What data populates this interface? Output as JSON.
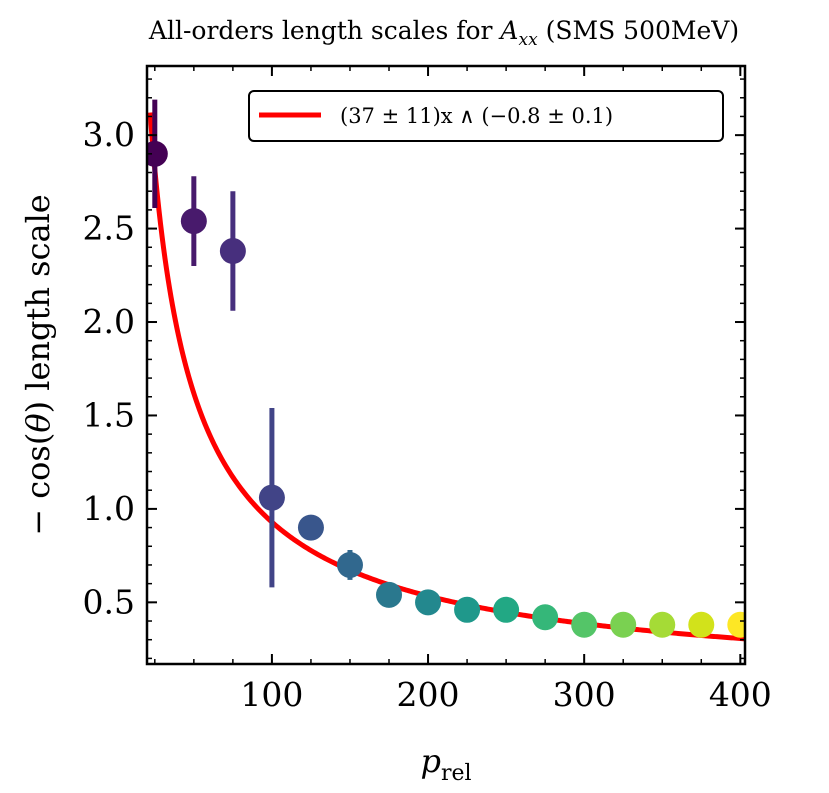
{
  "chart_data": {
    "type": "scatter",
    "title": "All-orders length scales for A_xx (SMS 500MeV)",
    "xlabel": "p_rel",
    "ylabel": "− cos(θ) length scale",
    "xlim": [
      20,
      403
    ],
    "ylim": [
      0.17,
      3.37
    ],
    "xticks": [
      100,
      200,
      300,
      400
    ],
    "yticks": [
      0.5,
      1.0,
      1.5,
      2.0,
      2.5,
      3.0
    ],
    "xtick_labels": [
      "100",
      "200",
      "300",
      "400"
    ],
    "ytick_labels": [
      "0.5",
      "1.0",
      "1.5",
      "2.0",
      "2.5",
      "3.0"
    ],
    "grid": false,
    "legend_position": "top-right",
    "series": [
      {
        "kind": "points_with_errorbars",
        "colormap": "viridis",
        "x": [
          25,
          50,
          75,
          100,
          125,
          150,
          175,
          200,
          225,
          250,
          275,
          300,
          325,
          350,
          375,
          400
        ],
        "y": [
          2.9,
          2.54,
          2.38,
          1.06,
          0.9,
          0.7,
          0.54,
          0.5,
          0.46,
          0.46,
          0.42,
          0.38,
          0.38,
          0.38,
          0.38,
          0.38
        ],
        "yerr": [
          0.29,
          0.24,
          0.32,
          0.48,
          0.0,
          0.08,
          0.0,
          0.0,
          0.0,
          0.0,
          0.0,
          0.0,
          0.0,
          0.0,
          0.0,
          0.0
        ],
        "colors": [
          "#440154",
          "#481a6c",
          "#472f7d",
          "#414487",
          "#39568c",
          "#31688e",
          "#2a788e",
          "#23888e",
          "#1f988b",
          "#22a884",
          "#35b779",
          "#54c568",
          "#7ad151",
          "#a5db36",
          "#d2e21b",
          "#fde725"
        ]
      },
      {
        "kind": "fit_line",
        "name": "(37 ± 11)x ∧ (−0.8 ± 0.1)",
        "color": "#ff0000",
        "a": 37,
        "b": -0.8
      }
    ]
  }
}
